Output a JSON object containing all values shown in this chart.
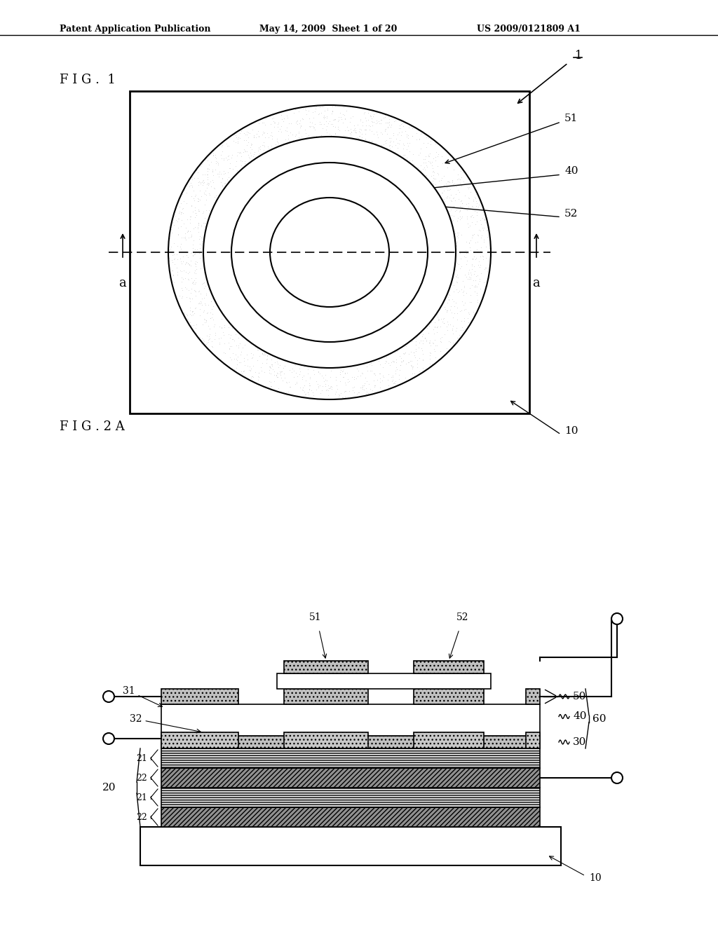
{
  "header_left": "Patent Application Publication",
  "header_mid": "May 14, 2009  Sheet 1 of 20",
  "header_right": "US 2009/0121809 A1",
  "fig1_label": "F I G .  1",
  "fig2a_label": "F I G . 2 A",
  "bg_color": "#ffffff",
  "line_color": "#000000",
  "stipple_color": "#c8c8c8",
  "hatch_dark_color": "#404040",
  "hatch_light_color": "#b0b0b0"
}
